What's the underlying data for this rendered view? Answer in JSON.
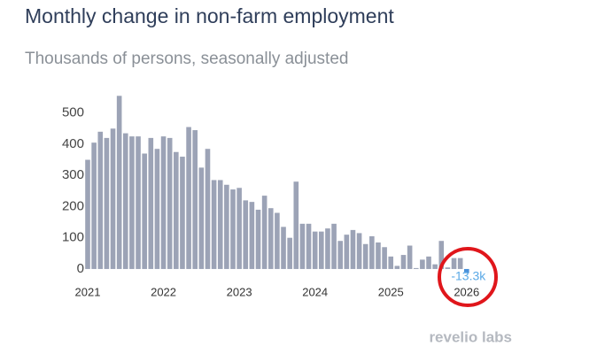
{
  "chart_data": {
    "type": "bar",
    "title": "Monthly change in non-farm employment",
    "subtitle": "Thousands of persons, seasonally adjusted",
    "categories": [
      "2021",
      null,
      null,
      null,
      null,
      null,
      null,
      null,
      null,
      null,
      null,
      null,
      "2022",
      null,
      null,
      null,
      null,
      null,
      null,
      null,
      null,
      null,
      null,
      null,
      "2023",
      null,
      null,
      null,
      null,
      null,
      null,
      null,
      null,
      null,
      null,
      null,
      "2024",
      null,
      null,
      null,
      null,
      null,
      null,
      null,
      null,
      null,
      null,
      null,
      "2025",
      null,
      null,
      null,
      null,
      null,
      null,
      null,
      null,
      null,
      null,
      null,
      "2026"
    ],
    "values": [
      350,
      405,
      440,
      420,
      450,
      555,
      435,
      425,
      425,
      370,
      420,
      385,
      425,
      420,
      375,
      360,
      455,
      445,
      325,
      385,
      285,
      285,
      270,
      255,
      260,
      220,
      215,
      190,
      235,
      195,
      180,
      135,
      100,
      280,
      145,
      145,
      120,
      120,
      130,
      145,
      90,
      110,
      125,
      115,
      80,
      105,
      85,
      70,
      40,
      10,
      45,
      75,
      3,
      30,
      40,
      15,
      90,
      5,
      35,
      35,
      -13.3
    ],
    "value_labels": [
      null,
      null,
      null,
      null,
      null,
      null,
      null,
      null,
      null,
      null,
      null,
      null,
      null,
      null,
      null,
      null,
      null,
      null,
      null,
      null,
      null,
      null,
      null,
      null,
      null,
      null,
      null,
      null,
      null,
      null,
      null,
      null,
      null,
      null,
      null,
      null,
      null,
      null,
      null,
      null,
      null,
      null,
      null,
      null,
      null,
      null,
      null,
      null,
      null,
      null,
      null,
      null,
      null,
      null,
      null,
      null,
      null,
      null,
      null,
      null,
      "-13.3k"
    ],
    "color": "#9ca3b6",
    "highlight_color": "#4a90d9",
    "ylim": [
      -20,
      570
    ],
    "yticks": [
      0,
      100,
      200,
      300,
      400,
      500
    ],
    "grid": false
  },
  "logo": "revelio labs"
}
